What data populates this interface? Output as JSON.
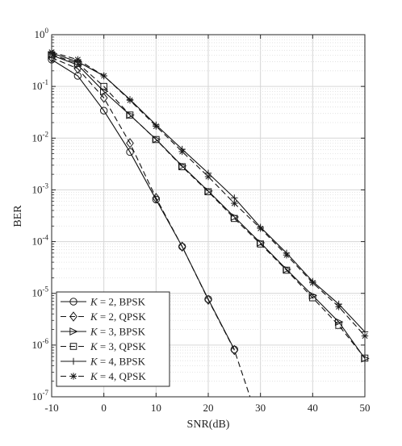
{
  "chart_data": {
    "type": "line",
    "xlabel": "SNR(dB)",
    "ylabel": "BER",
    "xlim": [
      -10,
      50
    ],
    "ylim": [
      1e-07,
      1
    ],
    "yscale": "log",
    "grid": true,
    "legend_position": "bottom-left",
    "x_ticks": [
      "-10",
      "0",
      "10",
      "20",
      "30",
      "40",
      "50"
    ],
    "y_tick_mantissa": "10",
    "y_tick_exponents": [
      "0",
      "-1",
      "-2",
      "-3",
      "-4",
      "-5",
      "-6",
      "-7"
    ],
    "series": [
      {
        "name": "K = 2, BPSK",
        "label_var": "K",
        "label_rest": " = 2, BPSK",
        "line": "solid",
        "marker": "circle",
        "x": [
          -10,
          -5,
          0,
          5,
          10,
          15,
          20,
          25
        ],
        "y": [
          0.33,
          0.16,
          0.034,
          0.0054,
          0.00065,
          8e-05,
          7.7e-06,
          8.2e-07
        ]
      },
      {
        "name": "K = 2, QPSK",
        "label_var": "K",
        "label_rest": " = 2, QPSK",
        "line": "dashed",
        "marker": "diamond",
        "x": [
          -10,
          -5,
          0,
          5,
          10,
          15,
          20,
          25,
          28
        ],
        "y": [
          0.36,
          0.22,
          0.06,
          0.008,
          0.0007,
          8e-05,
          7.5e-06,
          8e-07,
          1e-07
        ]
      },
      {
        "name": "K = 3, BPSK",
        "label_var": "K",
        "label_rest": " = 3, BPSK",
        "line": "solid",
        "marker": "triangle-right",
        "x": [
          -10,
          -5,
          0,
          5,
          10,
          15,
          20,
          25,
          30,
          35,
          40,
          45,
          50
        ],
        "y": [
          0.4,
          0.26,
          0.08,
          0.028,
          0.0095,
          0.0029,
          0.00095,
          0.0003,
          9.5e-05,
          2.9e-05,
          9.1e-06,
          2.8e-06,
          5.5e-07
        ]
      },
      {
        "name": "K = 3, QPSK",
        "label_var": "K",
        "label_rest": " = 3, QPSK",
        "line": "dashed",
        "marker": "square",
        "x": [
          -10,
          -5,
          0,
          5,
          10,
          15,
          20,
          25,
          30,
          35,
          40,
          45,
          50
        ],
        "y": [
          0.41,
          0.28,
          0.1,
          0.028,
          0.0094,
          0.0028,
          0.00092,
          0.00028,
          9e-05,
          2.8e-05,
          8.2e-06,
          2.4e-06,
          5.6e-07
        ]
      },
      {
        "name": "K = 4, BPSK",
        "label_var": "K",
        "label_rest": " = 4, BPSK",
        "line": "solid",
        "marker": "plus",
        "x": [
          -10,
          -5,
          0,
          5,
          10,
          15,
          20,
          25,
          30,
          35,
          40,
          45,
          50
        ],
        "y": [
          0.44,
          0.3,
          0.16,
          0.056,
          0.018,
          0.0061,
          0.0021,
          0.0007,
          0.00019,
          6e-05,
          1.7e-05,
          6.2e-06,
          1.8e-06
        ]
      },
      {
        "name": "K = 4, QPSK",
        "label_var": "K",
        "label_rest": " = 4, QPSK",
        "line": "dashed",
        "marker": "asterisk",
        "x": [
          -10,
          -5,
          0,
          5,
          10,
          15,
          20,
          25,
          30,
          35,
          40,
          45,
          50
        ],
        "y": [
          0.46,
          0.33,
          0.16,
          0.054,
          0.017,
          0.0055,
          0.0018,
          0.00055,
          0.00018,
          5.5e-05,
          1.6e-05,
          5.5e-06,
          1.5e-06
        ]
      }
    ]
  }
}
